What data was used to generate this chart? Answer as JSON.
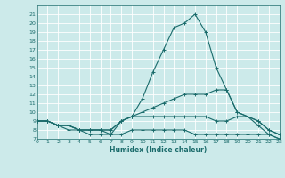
{
  "xlabel": "Humidex (Indice chaleur)",
  "bg_color": "#cceaea",
  "grid_color": "#ffffff",
  "line_color": "#1a6b6b",
  "x": [
    0,
    1,
    2,
    3,
    4,
    5,
    6,
    7,
    8,
    9,
    10,
    11,
    12,
    13,
    14,
    15,
    16,
    17,
    18,
    19,
    20,
    21,
    22,
    23
  ],
  "line_max": [
    9,
    9,
    8.5,
    8.5,
    8,
    8,
    8,
    7.5,
    9,
    9.5,
    11.5,
    14.5,
    17,
    19.5,
    20,
    21,
    19,
    15,
    12.5,
    10,
    9.5,
    8.5,
    7.5,
    7
  ],
  "line_upper_mid": [
    9,
    9,
    8.5,
    8.5,
    8,
    8,
    8,
    8,
    9,
    9.5,
    10,
    10.5,
    11,
    11.5,
    12,
    12,
    12,
    12.5,
    12.5,
    10,
    9.5,
    9,
    8,
    7.5
  ],
  "line_lower_mid": [
    9,
    9,
    8.5,
    8.5,
    8,
    8,
    8,
    8,
    9,
    9.5,
    9.5,
    9.5,
    9.5,
    9.5,
    9.5,
    9.5,
    9.5,
    9,
    9,
    9.5,
    9.5,
    9,
    8,
    7.5
  ],
  "line_min": [
    9,
    9,
    8.5,
    8,
    8,
    7.5,
    7.5,
    7.5,
    7.5,
    8,
    8,
    8,
    8,
    8,
    8,
    7.5,
    7.5,
    7.5,
    7.5,
    7.5,
    7.5,
    7.5,
    7.5,
    7
  ],
  "ylim": [
    7,
    22
  ],
  "xlim": [
    0,
    23
  ],
  "yticks": [
    7,
    8,
    9,
    10,
    11,
    12,
    13,
    14,
    15,
    16,
    17,
    18,
    19,
    20,
    21
  ],
  "xticks": [
    0,
    1,
    2,
    3,
    4,
    5,
    6,
    7,
    8,
    9,
    10,
    11,
    12,
    13,
    14,
    15,
    16,
    17,
    18,
    19,
    20,
    21,
    22,
    23
  ]
}
